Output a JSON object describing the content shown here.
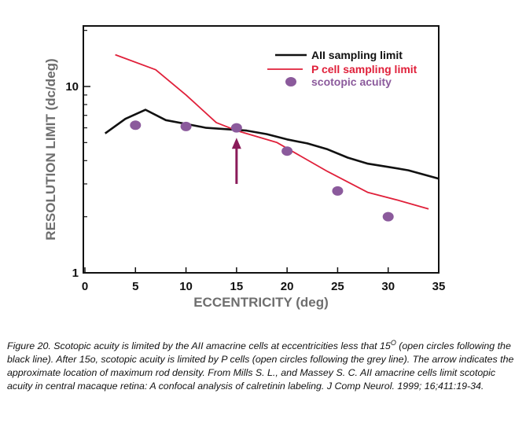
{
  "chart_data": {
    "type": "line",
    "title": "",
    "xlabel": "ECCENTRICITY (deg)",
    "ylabel": "RESOLUTION LIMIT (dc/deg)",
    "xlim": [
      0,
      35
    ],
    "ylim": [
      1,
      20
    ],
    "y_scale": "log",
    "x_ticks": [
      "0",
      "5",
      "10",
      "15",
      "20",
      "25",
      "30",
      "35"
    ],
    "y_ticks": [
      {
        "value": 1,
        "label": "1"
      },
      {
        "value": 10,
        "label": "10"
      }
    ],
    "grid": false,
    "legend_position": "top-right",
    "series": [
      {
        "name": "AII sampling limit",
        "kind": "line",
        "color": "#111111",
        "x": [
          2,
          4,
          6,
          8,
          10,
          12,
          14,
          16,
          18,
          20,
          22,
          24,
          26,
          28,
          30,
          32,
          35
        ],
        "y": [
          5.6,
          6.7,
          7.5,
          6.6,
          6.3,
          6.0,
          5.9,
          5.8,
          5.55,
          5.2,
          4.95,
          4.6,
          4.15,
          3.85,
          3.7,
          3.55,
          3.2
        ]
      },
      {
        "name": "P cell sampling limit",
        "kind": "line",
        "color": "#e0203a",
        "x": [
          3,
          7,
          10,
          13,
          15,
          19,
          24,
          28,
          31,
          34
        ],
        "y": [
          14.8,
          12.3,
          9.0,
          6.4,
          5.8,
          5.0,
          3.5,
          2.7,
          2.45,
          2.2
        ]
      },
      {
        "name": "scotopic acuity",
        "kind": "scatter",
        "color": "#8b5a9c",
        "x": [
          5,
          10,
          15,
          20,
          25,
          30
        ],
        "y": [
          6.2,
          6.1,
          6.0,
          4.5,
          2.75,
          2.0
        ]
      }
    ],
    "annotations": [
      {
        "type": "arrow",
        "color": "#8a1b5a",
        "x": 15,
        "y_from": 3.0,
        "y_to": 5.2
      }
    ]
  },
  "caption": {
    "part1": "Figure 20. Scotopic acuity is limited by the AII amacrine cells at eccentricities less that 15",
    "superscript": "O",
    "part2": " (open circles following the black line). After 15o, scotopic acuity is limited by P cells (open circles following the grey line). The arrow indicates the approximate location of maximum rod density. From Mills S. L., and Massey S. C. AII amacrine cells limit scotopic acuity in central macaque retina: A confocal analysis of calretinin labeling. J Comp Neurol. 1999; 16;411:19-34."
  }
}
